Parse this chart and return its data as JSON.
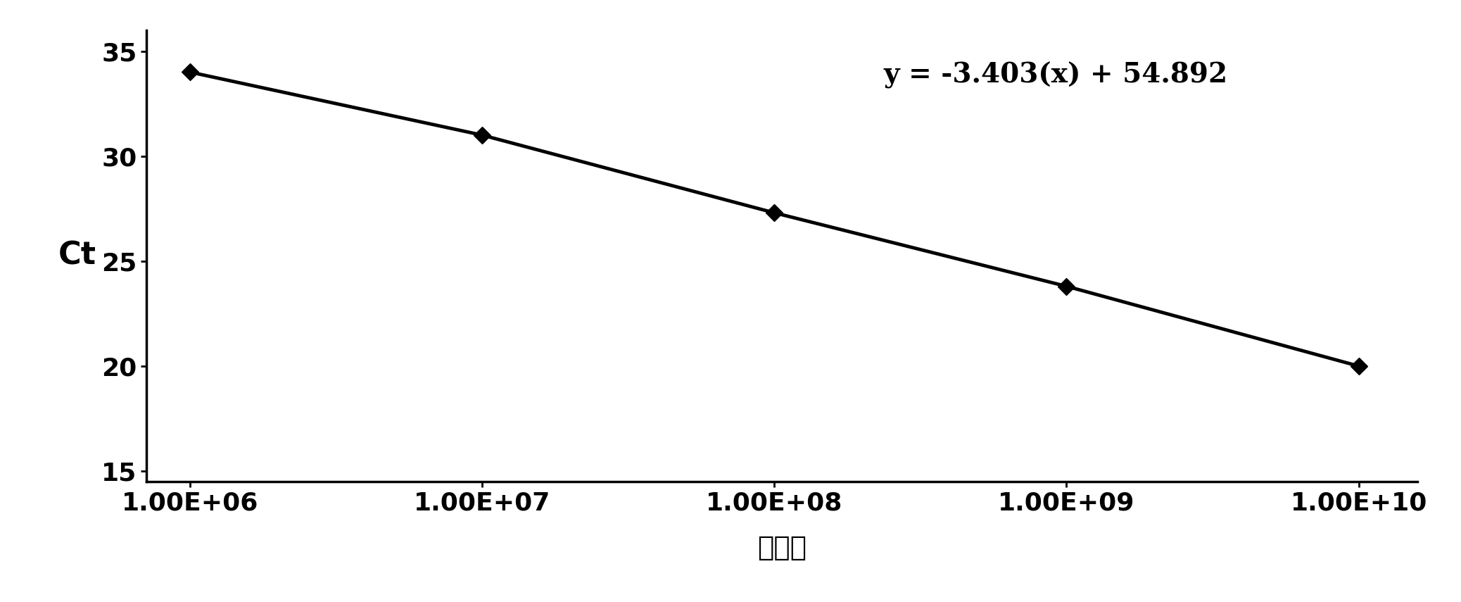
{
  "x_data": [
    1000000.0,
    10000000.0,
    100000000.0,
    1000000000.0,
    10000000000.0
  ],
  "y_data": [
    34.0,
    31.0,
    27.3,
    23.8,
    20.0
  ],
  "equation": "y = -3.403(x) + 54.892",
  "ylabel": "Ct",
  "xlabel": "拷贝数",
  "ylim": [
    14.5,
    36
  ],
  "yticks": [
    15,
    20,
    25,
    30,
    35
  ],
  "xtick_labels": [
    "1.00E+06",
    "1.00E+07",
    "1.00E+08",
    "1.00E+09",
    "1.00E+10"
  ],
  "line_color": "#000000",
  "marker_color": "#000000",
  "background_color": "#ffffff",
  "equation_fontsize": 28,
  "axis_label_fontsize": 32,
  "tick_fontsize": 26,
  "xlabel_fontsize": 28
}
